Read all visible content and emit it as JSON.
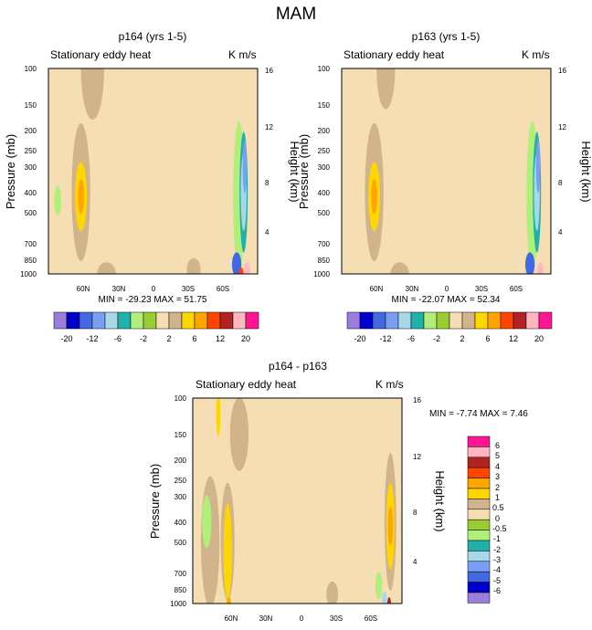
{
  "figure": {
    "title": "MAM"
  },
  "colors": {
    "background": "#ffffff",
    "neg": [
      "#9b7de0",
      "#0000cd",
      "#4169e1",
      "#7b9ef5",
      "#a8d8e8",
      "#20b2aa",
      "#b0f07a",
      "#9acd32"
    ],
    "pos": [
      "#f5deb3",
      "#d2b48c",
      "#ffd700",
      "#ffa500",
      "#ff4500",
      "#b22222",
      "#ffb6c1",
      "#ff1493"
    ]
  },
  "chart_data": [
    {
      "type": "heatmap",
      "title": "p164 (yrs 1-5)",
      "subtitle_left": "Stationary eddy heat",
      "units": "K m/s",
      "ylabel": "Pressure (mb)",
      "ylabel_right": "Height (km)",
      "pressure_ticks": [
        "100",
        "150",
        "200",
        "250",
        "300",
        "400",
        "500",
        "700",
        "850",
        "1000"
      ],
      "height_ticks": [
        "16",
        "12",
        "8",
        "4"
      ],
      "x_ticks": [
        "60N",
        "30N",
        "0",
        "30S",
        "60S"
      ],
      "xlim": [
        90,
        -90
      ],
      "ylim_mb": [
        100,
        1000
      ],
      "stats": "MIN = -29.23  MAX =  51.75",
      "min": -29.23,
      "max": 51.75,
      "colorbar_labels": [
        "-20",
        "-12",
        "-6",
        "-2",
        "2",
        "6",
        "12",
        "20"
      ],
      "regions": [
        {
          "lat": 52,
          "p": 100,
          "lat_w": 10,
          "p_w": 380,
          "bin": 9
        },
        {
          "lat": 62,
          "p": 400,
          "lat_w": 8,
          "p_w": 500,
          "bin": 9
        },
        {
          "lat": 62,
          "p": 420,
          "lat_w": 5,
          "p_w": 280,
          "bin": 10
        },
        {
          "lat": 62,
          "p": 420,
          "lat_w": 2.6,
          "p_w": 130,
          "bin": 11
        },
        {
          "lat": 82,
          "p": 440,
          "lat_w": 3,
          "p_w": 110,
          "bin": 6
        },
        {
          "lat": 20,
          "p": 200,
          "lat_w": 18,
          "p_w": 300,
          "bin": 8
        },
        {
          "lat": 5,
          "p": 650,
          "lat_w": 12,
          "p_w": 400,
          "bin": 8
        },
        {
          "lat": -28,
          "p": 380,
          "lat_w": 8,
          "p_w": 420,
          "bin": 8
        },
        {
          "lat": -50,
          "p": 230,
          "lat_w": 6,
          "p_w": 200,
          "bin": 8
        },
        {
          "lat": 40,
          "p": 1000,
          "lat_w": 8,
          "p_w": 180,
          "bin": 9
        },
        {
          "lat": -35,
          "p": 950,
          "lat_w": 6,
          "p_w": 160,
          "bin": 9
        },
        {
          "lat": -74,
          "p": 420,
          "lat_w": 5,
          "p_w": 560,
          "bin": 6
        },
        {
          "lat": -78,
          "p": 400,
          "lat_w": 3.5,
          "p_w": 450,
          "bin": 5
        },
        {
          "lat": -78,
          "p": 400,
          "lat_w": 2.5,
          "p_w": 300,
          "bin": 4
        },
        {
          "lat": -79,
          "p": 300,
          "lat_w": 1.8,
          "p_w": 150,
          "bin": 3
        },
        {
          "lat": -72,
          "p": 900,
          "lat_w": 4,
          "p_w": 170,
          "bin": 2
        },
        {
          "lat": -81,
          "p": 960,
          "lat_w": 2.5,
          "p_w": 90,
          "bin": 14
        },
        {
          "lat": -76,
          "p": 1000,
          "lat_w": 2,
          "p_w": 60,
          "bin": 12
        }
      ]
    },
    {
      "type": "heatmap",
      "title": "p163 (yrs 1-5)",
      "subtitle_left": "Stationary eddy heat",
      "units": "K m/s",
      "ylabel": "Pressure (mb)",
      "ylabel_right": "Height (km)",
      "pressure_ticks": [
        "100",
        "150",
        "200",
        "250",
        "300",
        "400",
        "500",
        "700",
        "850",
        "1000"
      ],
      "height_ticks": [
        "16",
        "12",
        "8",
        "4"
      ],
      "x_ticks": [
        "60N",
        "30N",
        "0",
        "30S",
        "60S"
      ],
      "xlim": [
        90,
        -90
      ],
      "ylim_mb": [
        100,
        1000
      ],
      "stats": "MIN = -22.07  MAX =  52.34",
      "min": -22.07,
      "max": 52.34,
      "colorbar_labels": [
        "-20",
        "-12",
        "-6",
        "-2",
        "2",
        "6",
        "12",
        "20"
      ],
      "regions": [
        {
          "lat": 52,
          "p": 100,
          "lat_w": 8,
          "p_w": 260,
          "bin": 9
        },
        {
          "lat": 62,
          "p": 400,
          "lat_w": 8,
          "p_w": 500,
          "bin": 9
        },
        {
          "lat": 62,
          "p": 420,
          "lat_w": 5,
          "p_w": 280,
          "bin": 10
        },
        {
          "lat": 62,
          "p": 420,
          "lat_w": 2.6,
          "p_w": 130,
          "bin": 11
        },
        {
          "lat": 20,
          "p": 200,
          "lat_w": 18,
          "p_w": 300,
          "bin": 8
        },
        {
          "lat": 5,
          "p": 650,
          "lat_w": 12,
          "p_w": 400,
          "bin": 8
        },
        {
          "lat": -28,
          "p": 380,
          "lat_w": 8,
          "p_w": 420,
          "bin": 8
        },
        {
          "lat": 40,
          "p": 1000,
          "lat_w": 8,
          "p_w": 180,
          "bin": 9
        },
        {
          "lat": -74,
          "p": 420,
          "lat_w": 5,
          "p_w": 560,
          "bin": 6
        },
        {
          "lat": -78,
          "p": 400,
          "lat_w": 3.5,
          "p_w": 450,
          "bin": 5
        },
        {
          "lat": -78,
          "p": 400,
          "lat_w": 2.5,
          "p_w": 300,
          "bin": 4
        },
        {
          "lat": -79,
          "p": 300,
          "lat_w": 1.8,
          "p_w": 150,
          "bin": 3
        },
        {
          "lat": -72,
          "p": 900,
          "lat_w": 4,
          "p_w": 170,
          "bin": 2
        },
        {
          "lat": -81,
          "p": 960,
          "lat_w": 2.5,
          "p_w": 90,
          "bin": 14
        }
      ]
    },
    {
      "type": "heatmap",
      "title": "p164 - p163",
      "subtitle_left": "Stationary eddy heat",
      "units": "K m/s",
      "ylabel": "Pressure (mb)",
      "ylabel_right": "Height (km)",
      "pressure_ticks": [
        "100",
        "150",
        "200",
        "250",
        "300",
        "400",
        "500",
        "700",
        "850",
        "1000"
      ],
      "height_ticks": [
        "16",
        "12",
        "8",
        "4"
      ],
      "x_ticks": [
        "60N",
        "30N",
        "0",
        "30S",
        "60S"
      ],
      "xlim": [
        90,
        -90
      ],
      "ylim_mb": [
        100,
        1000
      ],
      "stats": "MIN =  -7.74  MAX =   7.46",
      "min": -7.74,
      "max": 7.46,
      "colorbar_labels": [
        "6",
        "5",
        "4",
        "3",
        "2",
        "1",
        "0.5",
        "0",
        "-0.5",
        "-1",
        "-2",
        "-3",
        "-4",
        "-5",
        "-6"
      ],
      "regions": [
        {
          "lat": 68,
          "p": 120,
          "lat_w": 2,
          "p_w": 60,
          "bin": 10
        },
        {
          "lat": 75,
          "p": 500,
          "lat_w": 8,
          "p_w": 600,
          "bin": 9
        },
        {
          "lat": 78,
          "p": 400,
          "lat_w": 4,
          "p_w": 200,
          "bin": 6
        },
        {
          "lat": 60,
          "p": 500,
          "lat_w": 6,
          "p_w": 550,
          "bin": 9
        },
        {
          "lat": 60,
          "p": 560,
          "lat_w": 3.5,
          "p_w": 520,
          "bin": 10
        },
        {
          "lat": 59,
          "p": 1000,
          "lat_w": 2,
          "p_w": 60,
          "bin": 11
        },
        {
          "lat": 50,
          "p": 150,
          "lat_w": 8,
          "p_w": 120,
          "bin": 9
        },
        {
          "lat": 15,
          "p": 250,
          "lat_w": 15,
          "p_w": 220,
          "bin": 8
        },
        {
          "lat": -5,
          "p": 600,
          "lat_w": 14,
          "p_w": 380,
          "bin": 8
        },
        {
          "lat": -30,
          "p": 350,
          "lat_w": 6,
          "p_w": 320,
          "bin": 8
        },
        {
          "lat": -52,
          "p": 300,
          "lat_w": 4,
          "p_w": 250,
          "bin": 8
        },
        {
          "lat": -30,
          "p": 900,
          "lat_w": 5,
          "p_w": 180,
          "bin": 9
        },
        {
          "lat": -70,
          "p": 820,
          "lat_w": 3,
          "p_w": 180,
          "bin": 6
        },
        {
          "lat": -75,
          "p": 960,
          "lat_w": 2.2,
          "p_w": 100,
          "bin": 4
        },
        {
          "lat": -80,
          "p": 400,
          "lat_w": 5,
          "p_w": 500,
          "bin": 9
        },
        {
          "lat": -80,
          "p": 420,
          "lat_w": 3.5,
          "p_w": 350,
          "bin": 10
        },
        {
          "lat": -80,
          "p": 420,
          "lat_w": 2.2,
          "p_w": 150,
          "bin": 11
        },
        {
          "lat": -79,
          "p": 1000,
          "lat_w": 1.5,
          "p_w": 60,
          "bin": 13
        }
      ]
    }
  ]
}
